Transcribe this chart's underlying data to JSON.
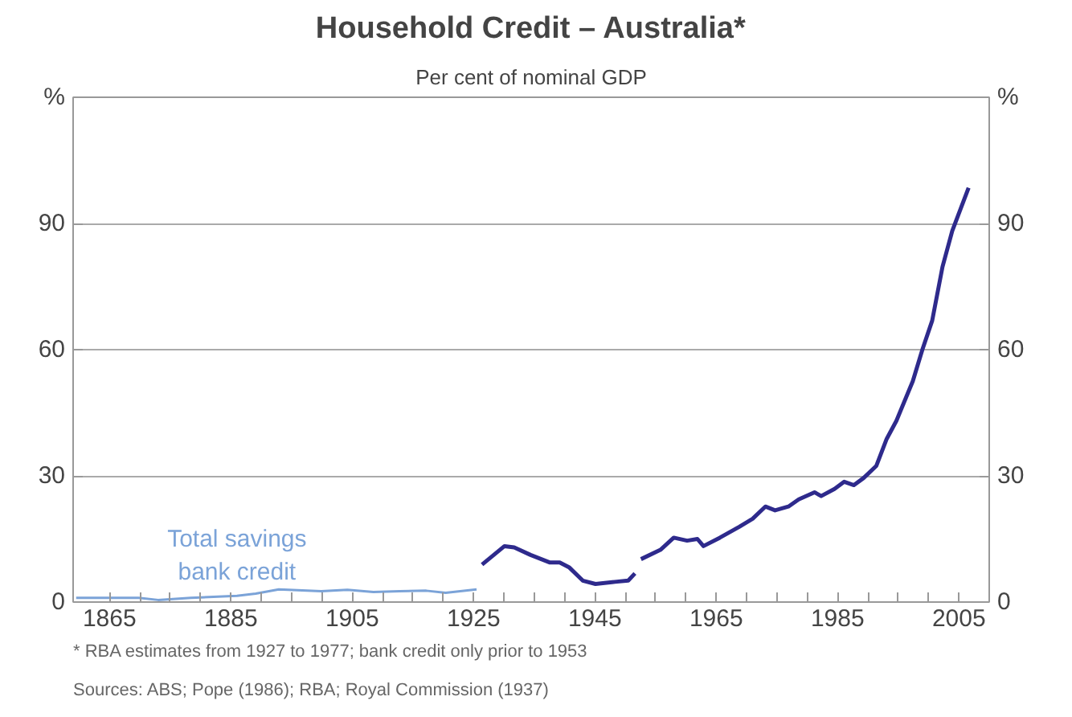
{
  "chart_data": {
    "type": "line",
    "title": "Household Credit – Australia*",
    "subtitle": "Per cent of nominal GDP",
    "ylabel": "%",
    "y2label": "%",
    "xlim": [
      1859,
      2010
    ],
    "ylim": [
      0,
      120
    ],
    "y2lim": [
      0,
      120
    ],
    "xticks": [
      {
        "value": 1865,
        "label": "1865"
      },
      {
        "value": 1870,
        "label": null
      },
      {
        "value": 1875,
        "label": null
      },
      {
        "value": 1880,
        "label": null
      },
      {
        "value": 1885,
        "label": "1885"
      },
      {
        "value": 1890,
        "label": null
      },
      {
        "value": 1895,
        "label": null
      },
      {
        "value": 1900,
        "label": null
      },
      {
        "value": 1905,
        "label": "1905"
      },
      {
        "value": 1910,
        "label": null
      },
      {
        "value": 1915,
        "label": null
      },
      {
        "value": 1920,
        "label": null
      },
      {
        "value": 1925,
        "label": "1925"
      },
      {
        "value": 1930,
        "label": null
      },
      {
        "value": 1935,
        "label": null
      },
      {
        "value": 1940,
        "label": null
      },
      {
        "value": 1945,
        "label": "1945"
      },
      {
        "value": 1950,
        "label": null
      },
      {
        "value": 1955,
        "label": null
      },
      {
        "value": 1960,
        "label": null
      },
      {
        "value": 1965,
        "label": "1965"
      },
      {
        "value": 1970,
        "label": null
      },
      {
        "value": 1975,
        "label": null
      },
      {
        "value": 1980,
        "label": null
      },
      {
        "value": 1985,
        "label": "1985"
      },
      {
        "value": 1990,
        "label": null
      },
      {
        "value": 1995,
        "label": null
      },
      {
        "value": 2000,
        "label": null
      },
      {
        "value": 2005,
        "label": "2005"
      }
    ],
    "yticks": [
      0,
      30,
      60,
      90
    ],
    "y2ticks": [
      0,
      30,
      60,
      90
    ],
    "grid": "y",
    "marker": "none",
    "line_style": "solid",
    "series": [
      {
        "name": "Total savings bank credit",
        "color": "#7ba3d8",
        "x": [
          1859.5,
          1869.8,
          1873,
          1878.4,
          1886,
          1889.1,
          1892.9,
          1899.9,
          1904.2,
          1908.5,
          1912.8,
          1917.2,
          1920.4,
          1925.5
        ],
        "values": [
          1,
          1,
          0.5,
          1,
          1.5,
          2,
          3,
          2.6,
          2.9,
          2.4,
          2.6,
          2.7,
          2.2,
          3
        ]
      },
      {
        "color": "#2e2a8c",
        "x": [
          1926.4,
          1930.1,
          1931.7,
          1934.4,
          1937.6,
          1939.2,
          1940.8,
          1943,
          1945.1,
          1948.3,
          1950.5,
          1951.6,
          1952.1,
          1952.6,
          1955.8,
          1958,
          1960.2,
          1961.9,
          1962.9,
          1965.6,
          1968.8,
          1971,
          1973.1,
          1974.7,
          1976.9,
          1978.6,
          1981.2,
          1982.3,
          1984.5,
          1986.1,
          1987.7,
          1989.3,
          1991.4,
          1993.1,
          1994.7,
          1997.4,
          1999,
          2000.6,
          2002.3,
          2003.9,
          2006.6
        ],
        "values": [
          8.9,
          13.3,
          13,
          11.2,
          9.4,
          9.4,
          8.2,
          5.1,
          4.3,
          4.8,
          5.1,
          6.8,
          null,
          10.2,
          12.4,
          15.3,
          14.6,
          15,
          13.3,
          15.3,
          17.9,
          19.8,
          22.7,
          21.8,
          22.7,
          24.4,
          26.1,
          25.2,
          26.9,
          28.6,
          27.8,
          29.5,
          32.4,
          38.8,
          43.1,
          52.5,
          60.1,
          66.9,
          79.7,
          88.2,
          98.5
        ]
      }
    ],
    "annotations": [
      "*  RBA estimates from 1927 to 1977; bank credit only prior to 1953",
      "Sources: ABS; Pope (1986); RBA; Royal Commission (1937)"
    ]
  }
}
